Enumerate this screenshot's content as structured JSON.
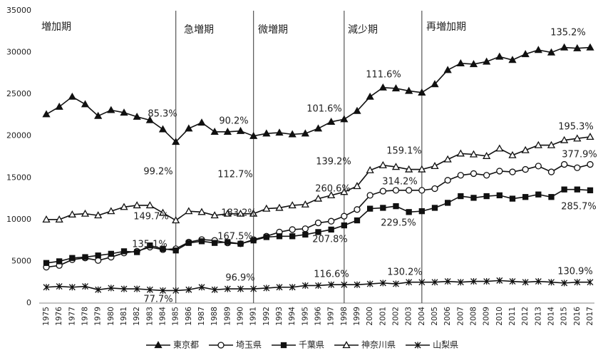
{
  "chart_data": {
    "type": "line",
    "categories": [
      "1975",
      "1976",
      "1977",
      "1978",
      "1979",
      "1980",
      "1981",
      "1982",
      "1983",
      "1984",
      "1985",
      "1986",
      "1987",
      "1988",
      "1989",
      "1990",
      "1991",
      "1992",
      "1993",
      "1994",
      "1995",
      "1996",
      "1997",
      "1998",
      "1999",
      "2000",
      "2001",
      "2002",
      "2003",
      "2004",
      "2005",
      "2006",
      "2007",
      "2008",
      "2009",
      "2010",
      "2011",
      "2012",
      "2013",
      "2014",
      "2015",
      "2016",
      "2017"
    ],
    "series": [
      {
        "name": "東京都",
        "color": "#111111",
        "marker": "triangle-filled",
        "values": [
          22600,
          23500,
          24700,
          23800,
          22400,
          23100,
          22800,
          22300,
          21900,
          20800,
          19300,
          20900,
          21600,
          20500,
          20500,
          20600,
          20000,
          20300,
          20400,
          20200,
          20300,
          20900,
          21700,
          22000,
          23000,
          24700,
          25800,
          25700,
          25400,
          25200,
          26200,
          27900,
          28700,
          28600,
          28900,
          29500,
          29100,
          29800,
          30300,
          30000,
          30600,
          30500,
          30600
        ]
      },
      {
        "name": "埼玉県",
        "color": "#111111",
        "marker": "circle-open",
        "values": [
          4300,
          4500,
          5200,
          5400,
          5100,
          5500,
          6000,
          6200,
          6700,
          6400,
          6500,
          7300,
          7600,
          7500,
          7200,
          7100,
          7600,
          8000,
          8500,
          8800,
          8900,
          9600,
          9800,
          10400,
          11200,
          12900,
          13400,
          13500,
          13500,
          13500,
          13700,
          14700,
          15300,
          15500,
          15300,
          15800,
          15700,
          16000,
          16400,
          15700,
          16600,
          16200,
          16600
        ]
      },
      {
        "name": "千葉県",
        "color": "#111111",
        "marker": "square-filled",
        "values": [
          4800,
          5000,
          5400,
          5500,
          5700,
          5900,
          6200,
          6100,
          6900,
          6500,
          6300,
          7200,
          7400,
          7200,
          7300,
          7100,
          7500,
          7900,
          8000,
          8000,
          8200,
          8500,
          8800,
          9300,
          9900,
          11300,
          11400,
          11600,
          10900,
          11000,
          11400,
          12000,
          12800,
          12600,
          12800,
          12900,
          12500,
          12700,
          13000,
          12700,
          13600,
          13600,
          13500
        ]
      },
      {
        "name": "神奈川県",
        "color": "#111111",
        "marker": "triangle-open",
        "values": [
          10000,
          10000,
          10600,
          10700,
          10500,
          11000,
          11500,
          11700,
          11700,
          10800,
          9900,
          11000,
          10900,
          10500,
          10700,
          10700,
          10700,
          11300,
          11400,
          11700,
          11800,
          12500,
          12900,
          13300,
          14000,
          15900,
          16500,
          16300,
          16000,
          16000,
          16400,
          17200,
          17900,
          17800,
          17600,
          18500,
          17700,
          18300,
          18900,
          18900,
          19500,
          19700,
          19900
        ]
      },
      {
        "name": "山梨県",
        "color": "#111111",
        "marker": "asterisk",
        "values": [
          1900,
          2000,
          1900,
          2000,
          1600,
          1800,
          1700,
          1700,
          1600,
          1500,
          1500,
          1600,
          1900,
          1600,
          1700,
          1700,
          1700,
          1800,
          1900,
          1900,
          2100,
          2100,
          2200,
          2200,
          2200,
          2300,
          2400,
          2300,
          2500,
          2500,
          2500,
          2600,
          2500,
          2600,
          2600,
          2700,
          2600,
          2500,
          2600,
          2500,
          2400,
          2500,
          2500
        ]
      }
    ],
    "ylim": [
      0,
      35000
    ],
    "yticks": [
      0,
      5000,
      10000,
      15000,
      20000,
      25000,
      30000,
      35000
    ],
    "grid": false,
    "periods": [
      "増加期",
      "急増期",
      "微増期",
      "減少期",
      "再増加期"
    ],
    "annotations": [
      "85.3%",
      "90.2%",
      "101.6%",
      "111.6%",
      "135.2%",
      "195.3%",
      "99.2%",
      "112.7%",
      "139.2%",
      "159.1%",
      "377.9%",
      "260.6%",
      "314.2%",
      "149.7%",
      "183.2%",
      "229.5%",
      "285.7%",
      "135.1%",
      "167.5%",
      "207.8%",
      "77.7%",
      "96.9%",
      "116.6%",
      "130.2%",
      "130.9%"
    ],
    "legend": "bottom"
  }
}
